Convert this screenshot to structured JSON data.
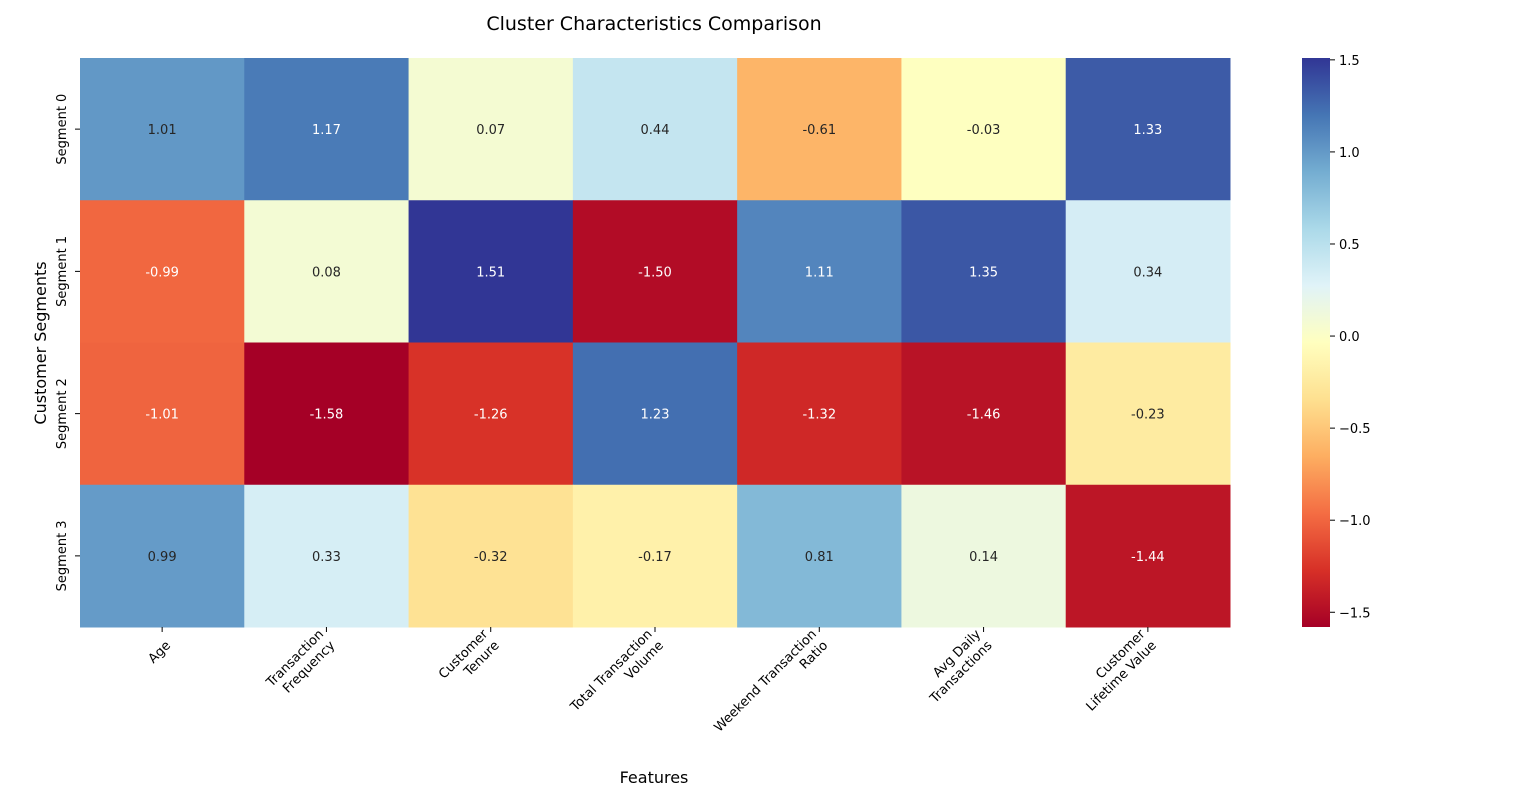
{
  "chart_data": {
    "type": "heatmap",
    "title": "Cluster Characteristics Comparison",
    "xlabel": "Features",
    "ylabel": "Customer Segments",
    "x_categories": [
      [
        "Age"
      ],
      [
        "Transaction",
        "Frequency"
      ],
      [
        "Customer",
        "Tenure"
      ],
      [
        "Total Transaction",
        "Volume"
      ],
      [
        "Weekend Transaction",
        "Ratio"
      ],
      [
        "Avg Daily",
        "Transactions"
      ],
      [
        "Customer",
        "Lifetime Value"
      ]
    ],
    "y_categories": [
      "Segment 0",
      "Segment 1",
      "Segment 2",
      "Segment 3"
    ],
    "values": [
      [
        1.01,
        1.17,
        0.07,
        0.44,
        -0.61,
        -0.03,
        1.33
      ],
      [
        -0.99,
        0.08,
        1.51,
        -1.5,
        1.11,
        1.35,
        0.34
      ],
      [
        -1.01,
        -1.58,
        -1.26,
        1.23,
        -1.32,
        -1.46,
        -0.23
      ],
      [
        0.99,
        0.33,
        -0.32,
        -0.17,
        0.81,
        0.14,
        -1.44
      ]
    ],
    "colorscale": "RdYlBu",
    "vmin": -1.58,
    "vmax": 1.51,
    "colorbar_ticks": [
      "1.5",
      "1.0",
      "0.5",
      "0.0",
      "−0.5",
      "−1.0",
      "−1.5"
    ],
    "colorbar_tick_values": [
      1.5,
      1.0,
      0.5,
      0.0,
      -0.5,
      -1.0,
      -1.5
    ],
    "annotation_format": "2 decimals"
  }
}
